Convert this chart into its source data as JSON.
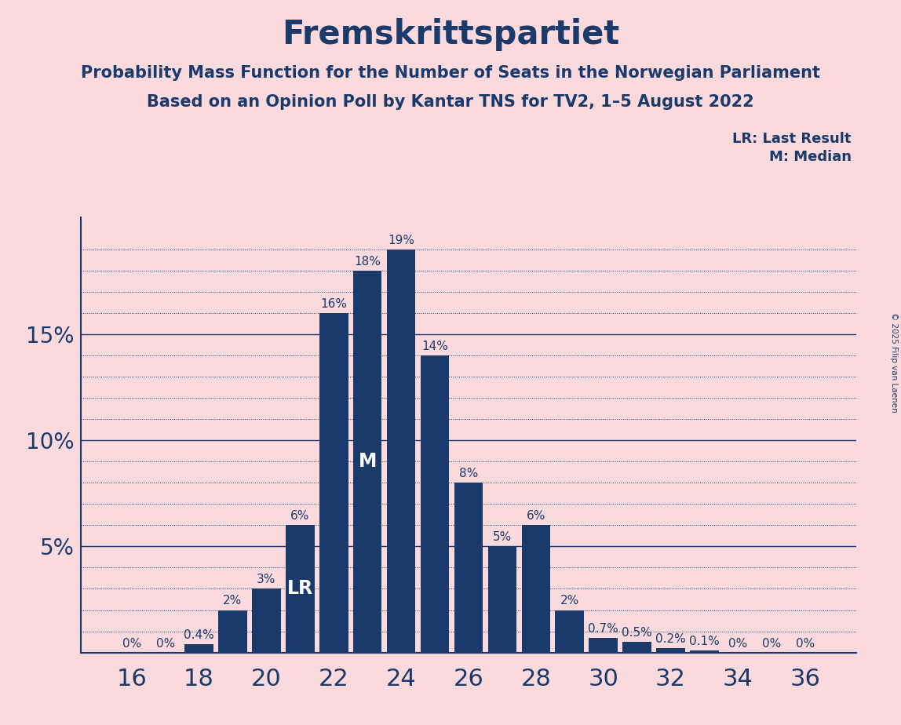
{
  "title": "Fremskrittspartiet",
  "subtitle1": "Probability Mass Function for the Number of Seats in the Norwegian Parliament",
  "subtitle2": "Based on an Opinion Poll by Kantar TNS for TV2, 1–5 August 2022",
  "copyright": "© 2025 Filip van Laenen",
  "bar_color": "#1a3a6b",
  "bg_color": "#fadadd",
  "text_color": "#1a3a6b",
  "seats": [
    16,
    17,
    18,
    19,
    20,
    21,
    22,
    23,
    24,
    25,
    26,
    27,
    28,
    29,
    30,
    31,
    32,
    33,
    34,
    35,
    36
  ],
  "probs": [
    0.0,
    0.0,
    0.4,
    2.0,
    3.0,
    6.0,
    16.0,
    18.0,
    19.0,
    14.0,
    8.0,
    5.0,
    6.0,
    2.0,
    0.7,
    0.5,
    0.2,
    0.1,
    0.0,
    0.0,
    0.0
  ],
  "labels": [
    "0%",
    "0%",
    "0.4%",
    "2%",
    "3%",
    "6%",
    "16%",
    "18%",
    "19%",
    "14%",
    "8%",
    "5%",
    "6%",
    "2%",
    "0.7%",
    "0.5%",
    "0.2%",
    "0.1%",
    "0%",
    "0%",
    "0%"
  ],
  "lr_seat": 21,
  "median_seat": 23,
  "solid_lines": [
    5,
    10,
    15
  ],
  "dotted_lines": [
    1,
    2,
    3,
    4,
    6,
    7,
    8,
    9,
    11,
    12,
    13,
    14,
    16,
    17,
    18,
    19
  ],
  "ytick_labels": [
    5,
    10,
    15
  ],
  "ylim": [
    0,
    20.5
  ],
  "xticks": [
    16,
    18,
    20,
    22,
    24,
    26,
    28,
    30,
    32,
    34,
    36
  ],
  "legend_lr": "LR: Last Result",
  "legend_m": "M: Median",
  "grid_color": "#1a3a6b",
  "title_fontsize": 30,
  "subtitle_fontsize": 15,
  "axis_tick_fontsize": 20,
  "bar_label_size": 11,
  "lr_label_size": 17,
  "m_label_size": 17
}
